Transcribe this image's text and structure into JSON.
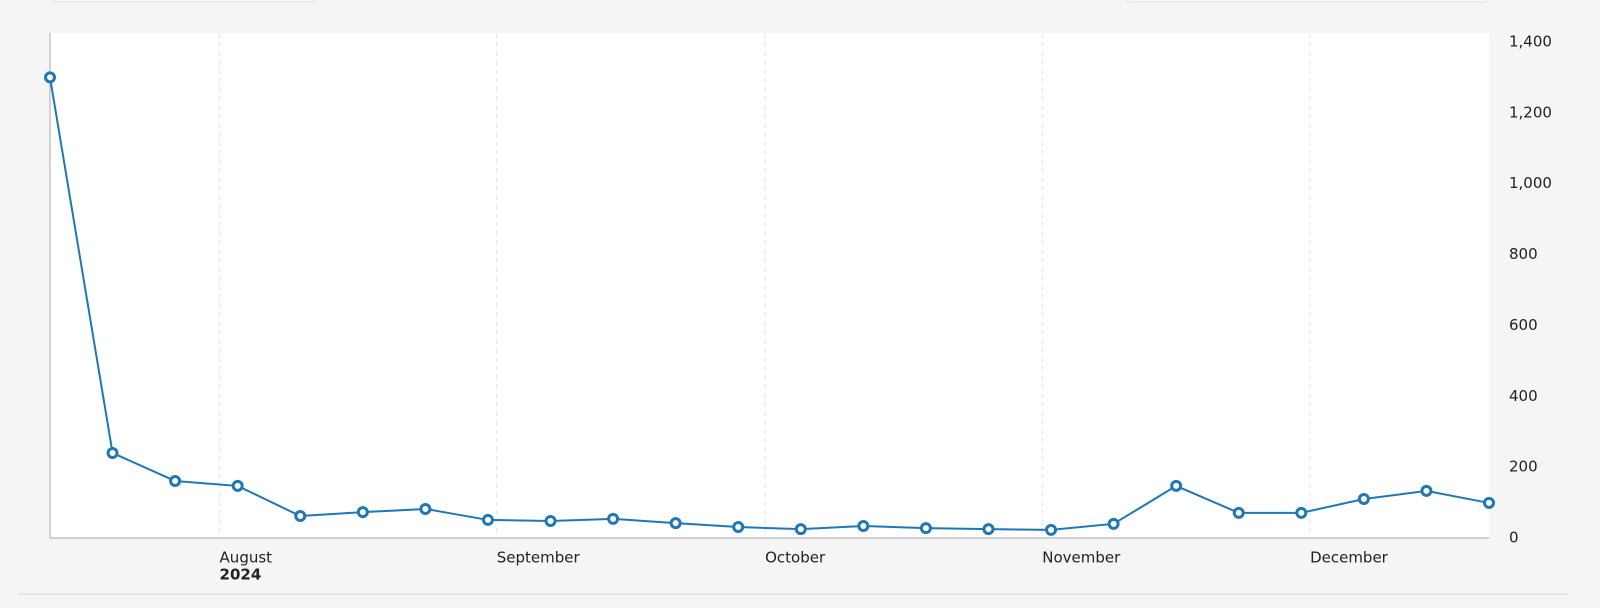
{
  "chart_data": {
    "type": "line",
    "categories": [
      null,
      null,
      null,
      null,
      null,
      null,
      null,
      null,
      null,
      null,
      null,
      null,
      null,
      null,
      null,
      null,
      null,
      null,
      null,
      null,
      null,
      null,
      null,
      null
    ],
    "series": [
      {
        "name": null,
        "color": "#1f77b4",
        "values": [
          1300,
          240,
          161,
          147,
          62,
          73,
          82,
          51,
          48,
          54,
          42,
          31,
          25,
          34,
          28,
          25,
          23,
          40,
          147,
          71,
          71,
          110,
          133,
          99
        ]
      }
    ],
    "xticks": [
      {
        "value": 2.71,
        "label": "August"
      },
      {
        "value": 7.14,
        "label": "September"
      },
      {
        "value": 11.43,
        "label": "October"
      },
      {
        "value": 15.86,
        "label": "November"
      },
      {
        "value": 20.14,
        "label": "December"
      }
    ],
    "x_year_label": "2024",
    "ylim": [
      0,
      1400
    ],
    "yticks": [
      0,
      200,
      400,
      600,
      800,
      {
        "value": 1000,
        "label": "1,000"
      },
      {
        "value": 1200,
        "label": "1,200"
      },
      {
        "value": 1400,
        "label": "1,400"
      }
    ],
    "y_axis_side": "right",
    "grid": true
  }
}
